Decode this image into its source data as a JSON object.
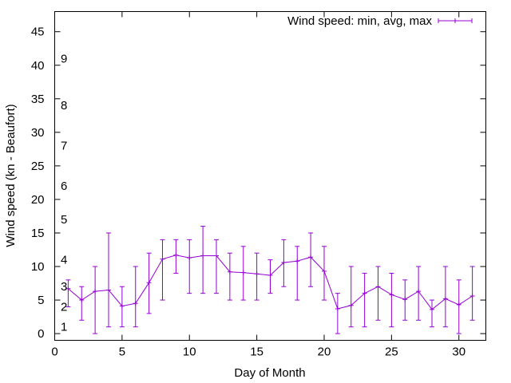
{
  "chart_data": {
    "type": "line",
    "title": "",
    "xlabel": "Day of Month",
    "ylabel": "Wind speed (kn - Beaufort)",
    "xlim": [
      0,
      32
    ],
    "ylim": [
      -1,
      48
    ],
    "xticks": [
      0,
      5,
      10,
      15,
      20,
      25,
      30
    ],
    "yticks": [
      0,
      5,
      10,
      15,
      20,
      25,
      30,
      35,
      40,
      45
    ],
    "grid": false,
    "legend": "top-right",
    "beaufort_scale": [
      {
        "label": "1",
        "y": 1
      },
      {
        "label": "2",
        "y": 4
      },
      {
        "label": "3",
        "y": 7
      },
      {
        "label": "4",
        "y": 11
      },
      {
        "label": "5",
        "y": 17
      },
      {
        "label": "6",
        "y": 22
      },
      {
        "label": "7",
        "y": 28
      },
      {
        "label": "8",
        "y": 34
      },
      {
        "label": "9",
        "y": 41
      }
    ],
    "series": [
      {
        "name": "Wind speed: min, avg, max",
        "color": "#9400d3",
        "points": [
          {
            "x": 1,
            "min": 4,
            "avg": 6.7,
            "max": 8
          },
          {
            "x": 2,
            "min": 2,
            "avg": 5.0,
            "max": 7
          },
          {
            "x": 3,
            "min": 0,
            "avg": 6.3,
            "max": 10
          },
          {
            "x": 4,
            "min": 1,
            "avg": 6.5,
            "max": 15
          },
          {
            "x": 5,
            "min": 1,
            "avg": 4.1,
            "max": 7
          },
          {
            "x": 6,
            "min": 1,
            "avg": 4.5,
            "max": 10
          },
          {
            "x": 7,
            "min": 3,
            "avg": 7.6,
            "max": 12
          },
          {
            "x": 8,
            "min": 5,
            "avg": 11.1,
            "max": 14
          },
          {
            "x": 9,
            "min": 9,
            "avg": 11.7,
            "max": 14
          },
          {
            "x": 10,
            "min": 6,
            "avg": 11.3,
            "max": 14
          },
          {
            "x": 11,
            "min": 6,
            "avg": 11.6,
            "max": 16
          },
          {
            "x": 12,
            "min": 6,
            "avg": 11.6,
            "max": 14
          },
          {
            "x": 13,
            "min": 5,
            "avg": 9.2,
            "max": 12
          },
          {
            "x": 14,
            "min": 5,
            "avg": 9.1,
            "max": 13
          },
          {
            "x": 15,
            "min": 5,
            "avg": 8.9,
            "max": 12
          },
          {
            "x": 16,
            "min": 6,
            "avg": 8.7,
            "max": 11
          },
          {
            "x": 17,
            "min": 7,
            "avg": 10.6,
            "max": 14
          },
          {
            "x": 18,
            "min": 5,
            "avg": 10.8,
            "max": 13
          },
          {
            "x": 19,
            "min": 7,
            "avg": 11.4,
            "max": 15
          },
          {
            "x": 20,
            "min": 5,
            "avg": 9.3,
            "max": 13
          },
          {
            "x": 21,
            "min": 0,
            "avg": 3.7,
            "max": 6
          },
          {
            "x": 22,
            "min": 1,
            "avg": 4.2,
            "max": 10
          },
          {
            "x": 23,
            "min": 1,
            "avg": 6.0,
            "max": 9
          },
          {
            "x": 24,
            "min": 2,
            "avg": 7.0,
            "max": 10
          },
          {
            "x": 25,
            "min": 1,
            "avg": 5.8,
            "max": 9
          },
          {
            "x": 26,
            "min": 2,
            "avg": 5.1,
            "max": 8
          },
          {
            "x": 27,
            "min": 2,
            "avg": 6.3,
            "max": 10
          },
          {
            "x": 28,
            "min": 1,
            "avg": 3.6,
            "max": 5
          },
          {
            "x": 29,
            "min": 1,
            "avg": 5.2,
            "max": 10
          },
          {
            "x": 30,
            "min": 0,
            "avg": 4.3,
            "max": 8
          },
          {
            "x": 31,
            "min": 2,
            "avg": 5.6,
            "max": 10
          }
        ]
      }
    ]
  }
}
